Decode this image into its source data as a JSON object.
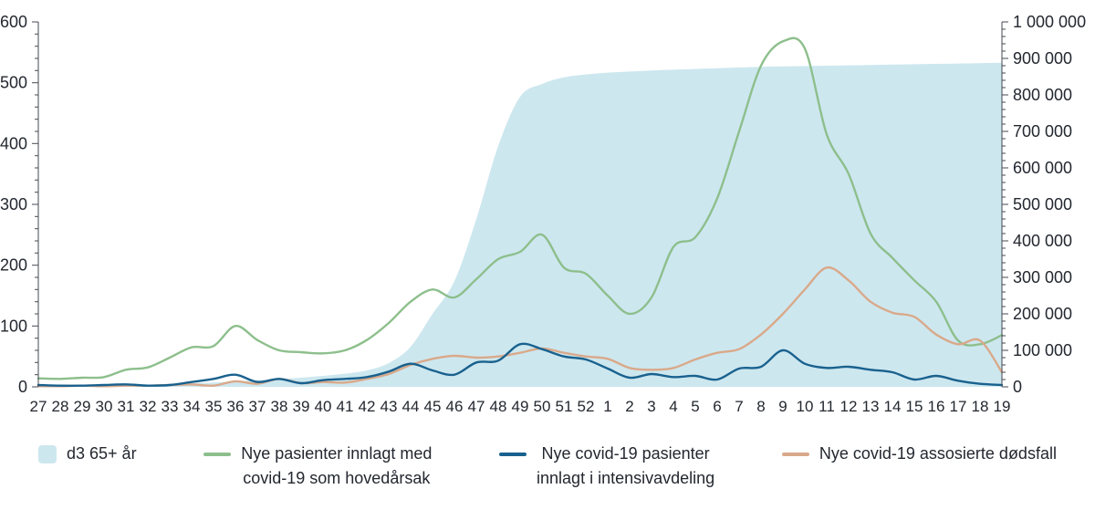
{
  "chart_data": {
    "type": "combo-area-line",
    "title": "",
    "xlabel": "",
    "ylabel": "",
    "grid": false,
    "legend_position": "bottom",
    "x_categories": [
      "27",
      "28",
      "29",
      "30",
      "31",
      "32",
      "33",
      "34",
      "35",
      "36",
      "37",
      "38",
      "39",
      "40",
      "41",
      "42",
      "43",
      "44",
      "45",
      "46",
      "47",
      "48",
      "49",
      "50",
      "51",
      "52",
      "1",
      "2",
      "3",
      "4",
      "5",
      "6",
      "7",
      "8",
      "9",
      "10",
      "11",
      "12",
      "13",
      "14",
      "15",
      "16",
      "17",
      "18",
      "19"
    ],
    "left_axis": {
      "min": 0,
      "max": 600,
      "tick_values": [
        0,
        100,
        200,
        300,
        400,
        500,
        600
      ],
      "tick_labels": [
        "0",
        "100",
        "200",
        "300",
        "400",
        "500",
        "600"
      ]
    },
    "right_axis": {
      "min": 0,
      "max": 1000000,
      "tick_values": [
        0,
        100000,
        200000,
        300000,
        400000,
        500000,
        600000,
        700000,
        800000,
        900000,
        1000000
      ],
      "tick_labels": [
        "0",
        "100 000",
        "200 000",
        "300 000",
        "400 000",
        "500 000",
        "600 000",
        "700 000",
        "800 000",
        "900 000",
        "1 000 000"
      ]
    },
    "series": [
      {
        "id": "d3-65-ar",
        "name": "d3 65+ år",
        "type": "area",
        "axis": "right",
        "color": "#cde7ef",
        "values": [
          2000,
          2500,
          3000,
          3500,
          4500,
          6000,
          8000,
          10000,
          12000,
          15000,
          18000,
          21000,
          25000,
          30000,
          36000,
          45000,
          65000,
          110000,
          200000,
          290000,
          460000,
          660000,
          795000,
          830000,
          848000,
          856000,
          861000,
          864000,
          867000,
          869000,
          871000,
          873000,
          875000,
          877000,
          878000,
          879000,
          880000,
          881000,
          882000,
          883000,
          884000,
          885000,
          886000,
          887000,
          888000
        ]
      },
      {
        "id": "innlagt-hovedarsak",
        "name": "Nye pasienter innlagt med covid-19 som hovedårsak",
        "type": "line",
        "axis": "left",
        "color": "#8dbf8c",
        "values": [
          14,
          13,
          15,
          16,
          28,
          32,
          48,
          65,
          67,
          100,
          77,
          60,
          57,
          55,
          60,
          77,
          105,
          140,
          160,
          147,
          177,
          210,
          222,
          250,
          196,
          186,
          150,
          120,
          147,
          230,
          246,
          310,
          420,
          528,
          568,
          556,
          415,
          350,
          252,
          212,
          175,
          140,
          76,
          70,
          85
        ]
      },
      {
        "id": "assosierte-dodsfall",
        "name": "Nye covid-19 assosierte dødsfall",
        "type": "line",
        "axis": "left",
        "color": "#d9a98a",
        "values": [
          1,
          1,
          2,
          1,
          2,
          2,
          3,
          4,
          2,
          9,
          5,
          13,
          6,
          8,
          7,
          13,
          21,
          36,
          46,
          51,
          48,
          50,
          56,
          63,
          56,
          50,
          46,
          31,
          28,
          31,
          45,
          56,
          62,
          86,
          120,
          160,
          196,
          175,
          140,
          122,
          115,
          86,
          70,
          76,
          24
        ]
      },
      {
        "id": "innlagt-intensiv",
        "name": "Nye covid-19 pasienter innlagt i intensivavdeling",
        "type": "line",
        "axis": "left",
        "color": "#19618e",
        "values": [
          3,
          2,
          2,
          3,
          4,
          2,
          3,
          8,
          13,
          20,
          8,
          13,
          6,
          11,
          13,
          16,
          25,
          38,
          27,
          20,
          40,
          43,
          70,
          62,
          50,
          45,
          30,
          15,
          21,
          16,
          18,
          12,
          30,
          33,
          60,
          38,
          31,
          33,
          28,
          24,
          12,
          18,
          10,
          5,
          3
        ]
      }
    ],
    "legend": [
      {
        "color": "#cde7ef",
        "swatch": "area",
        "lines": [
          "d3 65+ år"
        ]
      },
      {
        "color": "#8dbf8c",
        "swatch": "line",
        "lines": [
          "Nye pasienter innlagt med",
          "covid-19 som hovedårsak"
        ]
      },
      {
        "color": "#19618e",
        "swatch": "line",
        "lines": [
          "Nye covid-19 pasienter",
          "innlagt i intensivavdeling"
        ]
      },
      {
        "color": "#d9a98a",
        "swatch": "line",
        "lines": [
          "Nye covid-19 assosierte dødsfall"
        ]
      }
    ]
  }
}
